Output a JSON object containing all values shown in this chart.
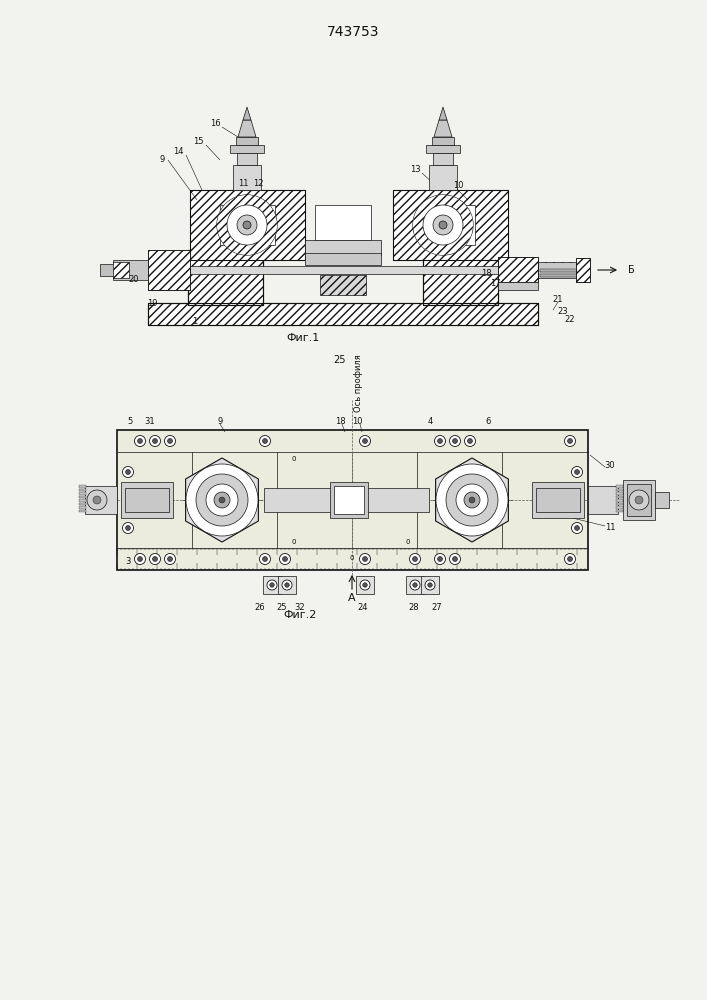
{
  "title": "743753",
  "fig1_caption": "Фиг.1",
  "fig2_caption": "Фиг.2",
  "axis_label": "Ось профиля",
  "B_label": "Б",
  "A_label": "А",
  "number_25": "25",
  "bg_color": "#f2f2ee",
  "line_color": "#111111",
  "page_width": 7.07,
  "page_height": 10.0
}
